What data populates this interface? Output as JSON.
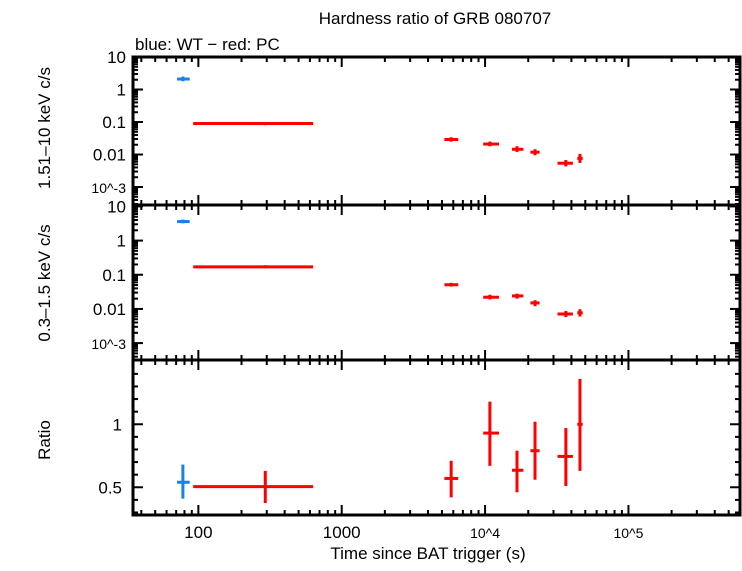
{
  "chart_data": {
    "type": "scatter",
    "title": "Hardness ratio of GRB 080707",
    "subtitle": "blue: WT − red: PC",
    "xlabel": "Time since BAT trigger (s)",
    "xscale": "log",
    "xlim": [
      35,
      600000
    ],
    "x_tick_labels": [
      "100",
      "1000",
      "10^4",
      "10^5"
    ],
    "colors": {
      "WT": "#1a7fe6",
      "PC": "#ff0000"
    },
    "panels": [
      {
        "ylabel": "1.51–10 keV c/s",
        "yscale": "log",
        "ylim": [
          0.00028,
          10
        ],
        "y_tick_labels": [
          "10",
          "1",
          "0.1",
          "0.01",
          "10^-3"
        ],
        "series": [
          {
            "mode": "WT",
            "points": [
              {
                "x": 78,
                "xlo": 71,
                "xhi": 87,
                "y": 2.1,
                "ylo": 1.8,
                "yhi": 2.5
              }
            ]
          },
          {
            "mode": "PC",
            "points": [
              {
                "x": 293,
                "xlo": 92,
                "xhi": 632,
                "y": 0.09,
                "ylo": 0.08,
                "yhi": 0.1
              },
              {
                "x": 5800,
                "xlo": 5200,
                "xhi": 6500,
                "y": 0.029,
                "ylo": 0.025,
                "yhi": 0.034
              },
              {
                "x": 10800,
                "xlo": 9700,
                "xhi": 12500,
                "y": 0.021,
                "ylo": 0.018,
                "yhi": 0.025
              },
              {
                "x": 16700,
                "xlo": 15400,
                "xhi": 18500,
                "y": 0.0145,
                "ylo": 0.012,
                "yhi": 0.018
              },
              {
                "x": 22300,
                "xlo": 20700,
                "xhi": 24000,
                "y": 0.0118,
                "ylo": 0.0095,
                "yhi": 0.0145
              },
              {
                "x": 36600,
                "xlo": 32000,
                "xhi": 41000,
                "y": 0.0054,
                "ylo": 0.0043,
                "yhi": 0.0068
              },
              {
                "x": 45900,
                "xlo": 44000,
                "xhi": 48000,
                "y": 0.0076,
                "ylo": 0.0055,
                "yhi": 0.0105
              }
            ]
          }
        ]
      },
      {
        "ylabel": "0.3–1.5 keV c/s",
        "yscale": "log",
        "ylim": [
          0.00032,
          11
        ],
        "y_tick_labels": [
          "10",
          "1",
          "0.1",
          "0.01",
          "10^-3"
        ],
        "series": [
          {
            "mode": "WT",
            "points": [
              {
                "x": 78,
                "xlo": 71,
                "xhi": 87,
                "y": 3.6,
                "ylo": 3.2,
                "yhi": 4.1
              }
            ]
          },
          {
            "mode": "PC",
            "points": [
              {
                "x": 293,
                "xlo": 92,
                "xhi": 632,
                "y": 0.17,
                "ylo": 0.155,
                "yhi": 0.19
              },
              {
                "x": 5800,
                "xlo": 5200,
                "xhi": 6500,
                "y": 0.051,
                "ylo": 0.045,
                "yhi": 0.058
              },
              {
                "x": 10800,
                "xlo": 9700,
                "xhi": 12500,
                "y": 0.022,
                "ylo": 0.019,
                "yhi": 0.026
              },
              {
                "x": 16700,
                "xlo": 15400,
                "xhi": 18500,
                "y": 0.024,
                "ylo": 0.02,
                "yhi": 0.028
              },
              {
                "x": 22300,
                "xlo": 20700,
                "xhi": 24000,
                "y": 0.015,
                "ylo": 0.012,
                "yhi": 0.018
              },
              {
                "x": 36600,
                "xlo": 32000,
                "xhi": 41000,
                "y": 0.0071,
                "ylo": 0.0058,
                "yhi": 0.0087
              },
              {
                "x": 45900,
                "xlo": 44000,
                "xhi": 48000,
                "y": 0.0077,
                "ylo": 0.006,
                "yhi": 0.0098
              }
            ]
          }
        ]
      },
      {
        "ylabel": "Ratio",
        "yscale": "linear",
        "ylim": [
          0.28,
          1.51
        ],
        "y_tick_labels": [
          "1",
          "0.5"
        ],
        "series": [
          {
            "mode": "WT",
            "points": [
              {
                "x": 78,
                "xlo": 71,
                "xhi": 87,
                "y": 0.54,
                "ylo": 0.41,
                "yhi": 0.68
              }
            ]
          },
          {
            "mode": "PC",
            "points": [
              {
                "x": 293,
                "xlo": 92,
                "xhi": 632,
                "y": 0.505,
                "ylo": 0.375,
                "yhi": 0.63
              },
              {
                "x": 5800,
                "xlo": 5200,
                "xhi": 6500,
                "y": 0.57,
                "ylo": 0.42,
                "yhi": 0.71
              },
              {
                "x": 10800,
                "xlo": 9700,
                "xhi": 12500,
                "y": 0.93,
                "ylo": 0.67,
                "yhi": 1.18
              },
              {
                "x": 16700,
                "xlo": 15400,
                "xhi": 18500,
                "y": 0.635,
                "ylo": 0.46,
                "yhi": 0.79
              },
              {
                "x": 22300,
                "xlo": 20700,
                "xhi": 24000,
                "y": 0.79,
                "ylo": 0.56,
                "yhi": 1.02
              },
              {
                "x": 36600,
                "xlo": 32000,
                "xhi": 41000,
                "y": 0.745,
                "ylo": 0.51,
                "yhi": 0.97
              },
              {
                "x": 45900,
                "xlo": 44000,
                "xhi": 48000,
                "y": 1.0,
                "ylo": 0.63,
                "yhi": 1.36
              }
            ]
          }
        ]
      }
    ]
  }
}
